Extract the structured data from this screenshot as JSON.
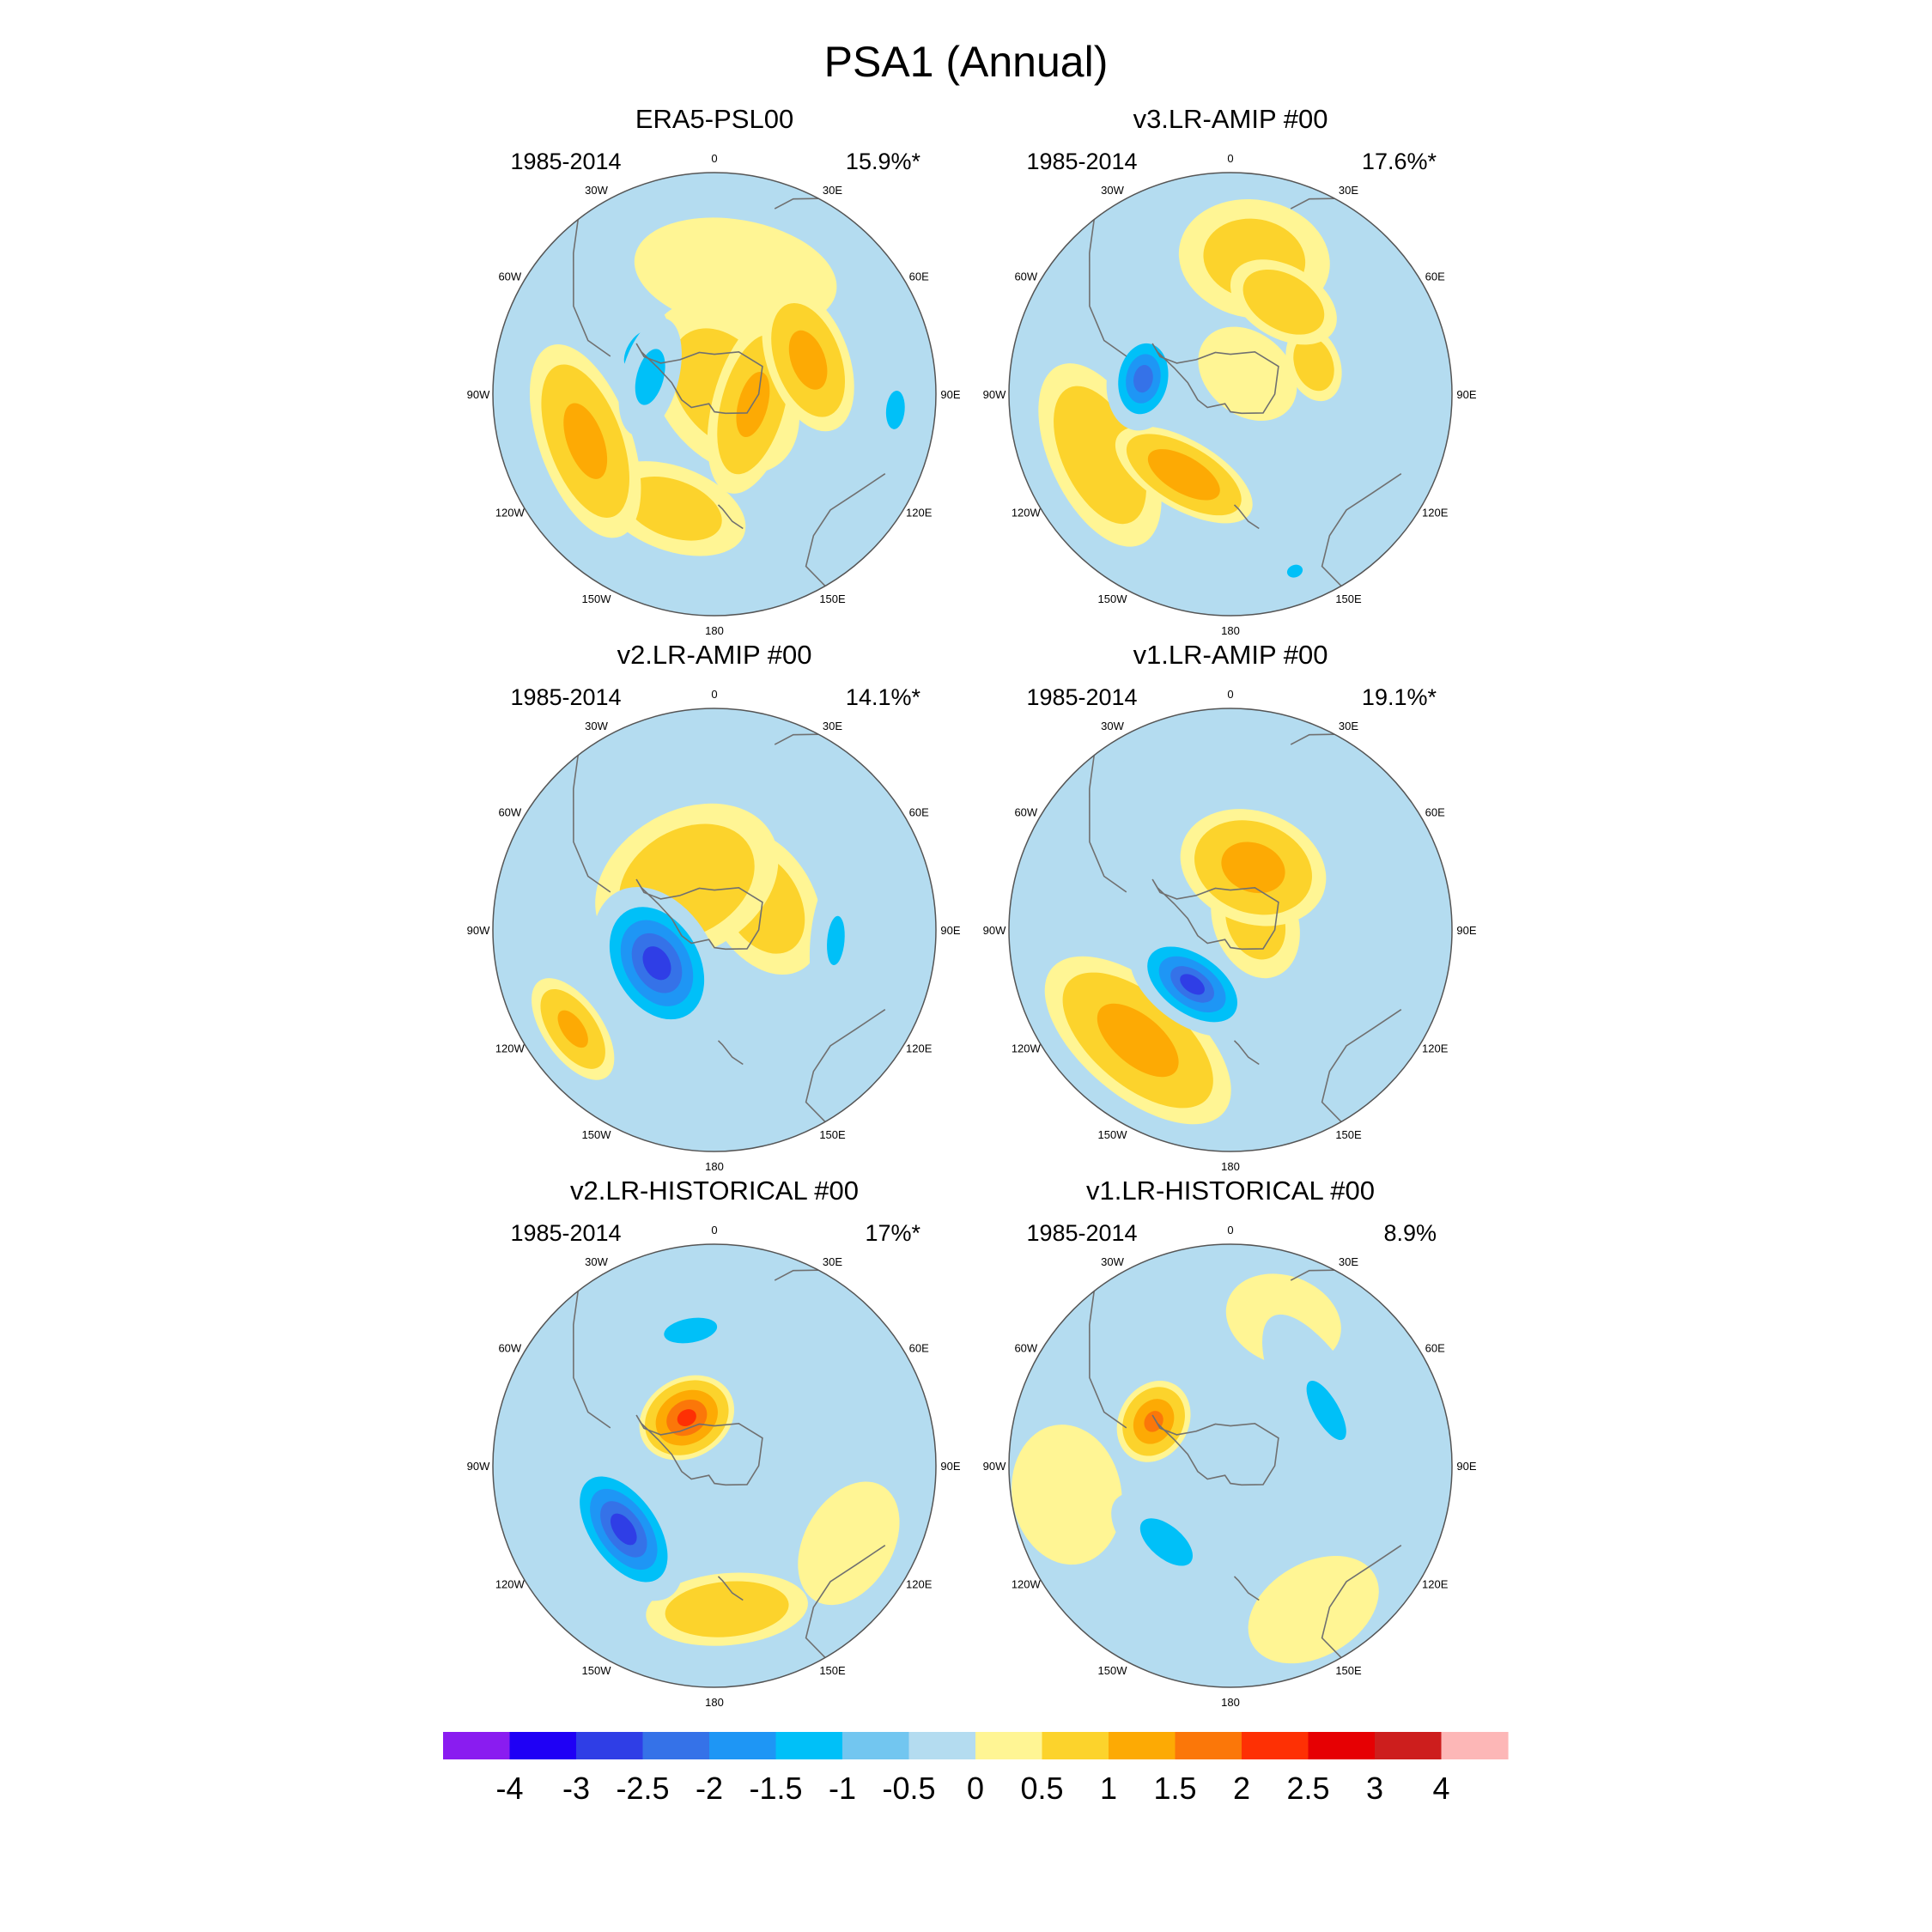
{
  "title": "PSA1 (Annual)",
  "colors": {
    "coast": "#707070",
    "rim": "#555555",
    "ocean_default": "#b4dcf0"
  },
  "chart_data": {
    "type": "heatmap",
    "projection": "south-polar-stereographic",
    "longitude_labels": [
      "0",
      "30E",
      "60E",
      "90E",
      "120E",
      "150E",
      "180",
      "150W",
      "120W",
      "90W",
      "60W",
      "30W"
    ],
    "colorbar": {
      "levels": [
        "-4",
        "-3",
        "-2.5",
        "-2",
        "-1.5",
        "-1",
        "-0.5",
        "0",
        "0.5",
        "1",
        "1.5",
        "2",
        "2.5",
        "3",
        "4"
      ],
      "colors": [
        "#8a1cf0",
        "#1f00f5",
        "#2f3ee6",
        "#3572e8",
        "#1e96f5",
        "#00c0f8",
        "#72c6f0",
        "#b4dcf0",
        "#fff594",
        "#fcd32c",
        "#fdaa04",
        "#fb7709",
        "#fe3004",
        "#e60003",
        "#cd1e1d",
        "#fdb7b7"
      ]
    },
    "panels": [
      {
        "name": "ERA5-PSL00",
        "period": "1985-2014",
        "percent": "15.9%*",
        "features": [
          {
            "lon": 10,
            "r": 0.55,
            "a": 0.75,
            "b": 0.4,
            "val": 0.3
          },
          {
            "lon": 55,
            "r": 0.05,
            "a": 0.55,
            "b": 0.38,
            "val": 0.75
          },
          {
            "lon": 70,
            "r": 0.45,
            "a": 0.4,
            "b": 0.22,
            "val": 1.2
          },
          {
            "lon": 105,
            "r": 0.18,
            "a": 0.5,
            "b": 0.22,
            "val": 1.1
          },
          {
            "lon": 95,
            "r": 0.82,
            "a": 0.25,
            "b": 0.12,
            "val": -1.2
          },
          {
            "lon": -75,
            "r": 0.3,
            "a": 0.32,
            "b": 0.15,
            "val": -1.35
          },
          {
            "lon": -60,
            "r": 0.4,
            "a": 0.24,
            "b": 0.12,
            "val": -1.3
          },
          {
            "lon": -110,
            "r": 0.62,
            "a": 0.55,
            "b": 0.25,
            "val": 1.15
          },
          {
            "lon": -160,
            "r": 0.55,
            "a": 0.45,
            "b": 0.25,
            "val": 0.7
          }
        ]
      },
      {
        "name": "v3.LR-AMIP  #00",
        "period": "1985-2014",
        "percent": "17.6%*",
        "features": [
          {
            "lon": 10,
            "r": 0.62,
            "a": 0.45,
            "b": 0.35,
            "val": 0.7
          },
          {
            "lon": 30,
            "r": 0.48,
            "a": 0.32,
            "b": 0.2,
            "val": 1.0
          },
          {
            "lon": 70,
            "r": 0.4,
            "a": 0.22,
            "b": 0.15,
            "val": 0.85
          },
          {
            "lon": 40,
            "r": 0.12,
            "a": 0.4,
            "b": 0.3,
            "val": 0.3
          },
          {
            "lon": -80,
            "r": 0.4,
            "a": 0.26,
            "b": 0.18,
            "val": -2.3
          },
          {
            "lon": -150,
            "r": 0.42,
            "a": 0.4,
            "b": 0.18,
            "val": 1.5
          },
          {
            "lon": -115,
            "r": 0.65,
            "a": 0.55,
            "b": 0.28,
            "val": 0.95
          },
          {
            "lon": 160,
            "r": 0.85,
            "a": 0.13,
            "b": 0.1,
            "val": -1.05
          }
        ]
      },
      {
        "name": "v2.LR-AMIP  #00",
        "period": "1985-2014",
        "percent": "14.1%*",
        "features": [
          {
            "lon": -30,
            "r": 0.25,
            "a": 0.55,
            "b": 0.4,
            "val": 0.9
          },
          {
            "lon": 60,
            "r": 0.25,
            "a": 0.45,
            "b": 0.3,
            "val": 0.8
          },
          {
            "lon": -120,
            "r": 0.3,
            "a": 0.4,
            "b": 0.28,
            "val": -2.8
          },
          {
            "lon": 95,
            "r": 0.55,
            "a": 0.4,
            "b": 0.14,
            "val": -1.05
          },
          {
            "lon": -125,
            "r": 0.78,
            "a": 0.32,
            "b": 0.16,
            "val": 1.1
          },
          {
            "lon": 20,
            "r": 0.75,
            "a": 0.5,
            "b": 0.25,
            "val": -0.7
          },
          {
            "lon": -160,
            "r": 0.6,
            "a": 0.35,
            "b": 0.25,
            "val": -0.65
          }
        ]
      },
      {
        "name": "v1.LR-AMIP  #00",
        "period": "1985-2014",
        "percent": "19.1%*",
        "features": [
          {
            "lon": 20,
            "r": 0.3,
            "a": 0.4,
            "b": 0.3,
            "val": 1.25
          },
          {
            "lon": 70,
            "r": 0.12,
            "a": 0.35,
            "b": 0.25,
            "val": 0.7
          },
          {
            "lon": -145,
            "r": 0.3,
            "a": 0.35,
            "b": 0.2,
            "val": -2.6
          },
          {
            "lon": -140,
            "r": 0.65,
            "a": 0.6,
            "b": 0.3,
            "val": 1.25
          },
          {
            "lon": -20,
            "r": 0.7,
            "a": 0.45,
            "b": 0.3,
            "val": -0.6
          },
          {
            "lon": 80,
            "r": 0.75,
            "a": 0.45,
            "b": 0.3,
            "val": -0.6
          }
        ]
      },
      {
        "name": "v2.LR-HISTORICAL  #00",
        "period": "1985-2014",
        "percent": "17%*",
        "features": [
          {
            "lon": -30,
            "r": 0.25,
            "a": 0.25,
            "b": 0.2,
            "val": 2.1
          },
          {
            "lon": -10,
            "r": 0.62,
            "a": 0.4,
            "b": 0.18,
            "val": -1.1
          },
          {
            "lon": 60,
            "r": 0.5,
            "a": 0.22,
            "b": 0.16,
            "val": -0.9
          },
          {
            "lon": -125,
            "r": 0.5,
            "a": 0.4,
            "b": 0.22,
            "val": -2.8
          },
          {
            "lon": 175,
            "r": 0.65,
            "a": 0.45,
            "b": 0.2,
            "val": 1.0
          },
          {
            "lon": 120,
            "r": 0.7,
            "a": 0.45,
            "b": 0.3,
            "val": 0.4
          },
          {
            "lon": -90,
            "r": 0.85,
            "a": 0.3,
            "b": 0.25,
            "val": -0.5
          }
        ]
      },
      {
        "name": "v1.LR-HISTORICAL  #00",
        "period": "1985-2014",
        "percent": "8.9%",
        "features": [
          {
            "lon": -60,
            "r": 0.4,
            "a": 0.22,
            "b": 0.18,
            "val": 1.6
          },
          {
            "lon": 60,
            "r": 0.5,
            "a": 0.6,
            "b": 0.22,
            "val": -1.0
          },
          {
            "lon": -140,
            "r": 0.45,
            "a": 0.35,
            "b": 0.18,
            "val": -1.35
          },
          {
            "lon": -100,
            "r": 0.75,
            "a": 0.45,
            "b": 0.35,
            "val": 0.5
          },
          {
            "lon": 150,
            "r": 0.75,
            "a": 0.45,
            "b": 0.3,
            "val": 0.5
          },
          {
            "lon": 20,
            "r": 0.7,
            "a": 0.4,
            "b": 0.3,
            "val": 0.4
          }
        ]
      }
    ]
  }
}
